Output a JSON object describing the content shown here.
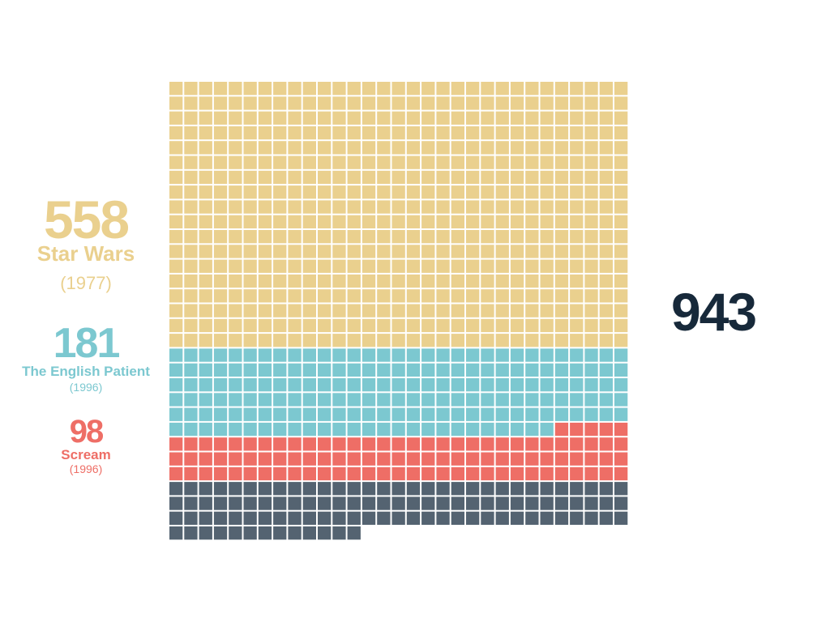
{
  "chart_data": {
    "type": "waffle",
    "total": "943",
    "columns": 31,
    "series": [
      {
        "name": "Star Wars",
        "year": "(1977)",
        "value": 558,
        "value_label": "558",
        "color": "#ead08e"
      },
      {
        "name": "The English Patient",
        "year": "(1996)",
        "value": 181,
        "value_label": "181",
        "color": "#7cc8d0"
      },
      {
        "name": "Scream",
        "year": "(1996)",
        "value": 98,
        "value_label": "98",
        "color": "#ee6e66"
      },
      {
        "name": "",
        "year": "",
        "value": 106,
        "value_label": "",
        "color": "#546371"
      }
    ],
    "total_color": "#17293a"
  }
}
